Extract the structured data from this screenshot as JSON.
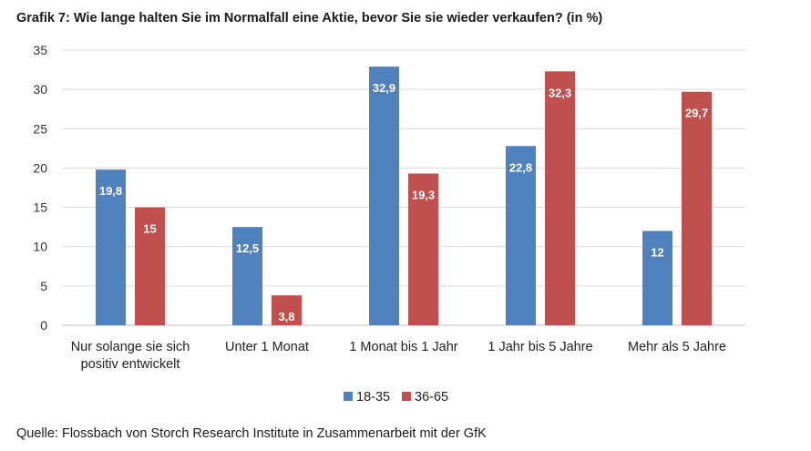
{
  "chart_data": {
    "type": "bar",
    "title": "Grafik 7: Wie lange halten Sie im Normalfall eine Aktie, bevor Sie sie wieder verkaufen? (in %)",
    "categories": [
      [
        "Nur solange sie sich",
        "positiv entwickelt"
      ],
      [
        "Unter 1 Monat"
      ],
      [
        "1 Monat bis 1 Jahr"
      ],
      [
        "1 Jahr bis 5 Jahre"
      ],
      [
        "Mehr als 5 Jahre"
      ]
    ],
    "series": [
      {
        "name": "18-35",
        "color": "#4f81bd",
        "values": [
          19.8,
          12.5,
          32.9,
          22.8,
          12
        ],
        "labels": [
          "19,8",
          "12,5",
          "32,9",
          "22,8",
          "12"
        ]
      },
      {
        "name": "36-65",
        "color": "#c0504d",
        "values": [
          15,
          3.8,
          19.3,
          32.3,
          29.7
        ],
        "labels": [
          "15",
          "3,8",
          "19,3",
          "32,3",
          "29,7"
        ]
      }
    ],
    "ylim": [
      0,
      35
    ],
    "yticks": [
      0,
      5,
      10,
      15,
      20,
      25,
      30,
      35
    ],
    "grid": true,
    "legend": "bottom-center",
    "xlabel": "",
    "ylabel": ""
  },
  "source": "Quelle: Flossbach von Storch Research Institute in Zusammenarbeit mit der GfK"
}
